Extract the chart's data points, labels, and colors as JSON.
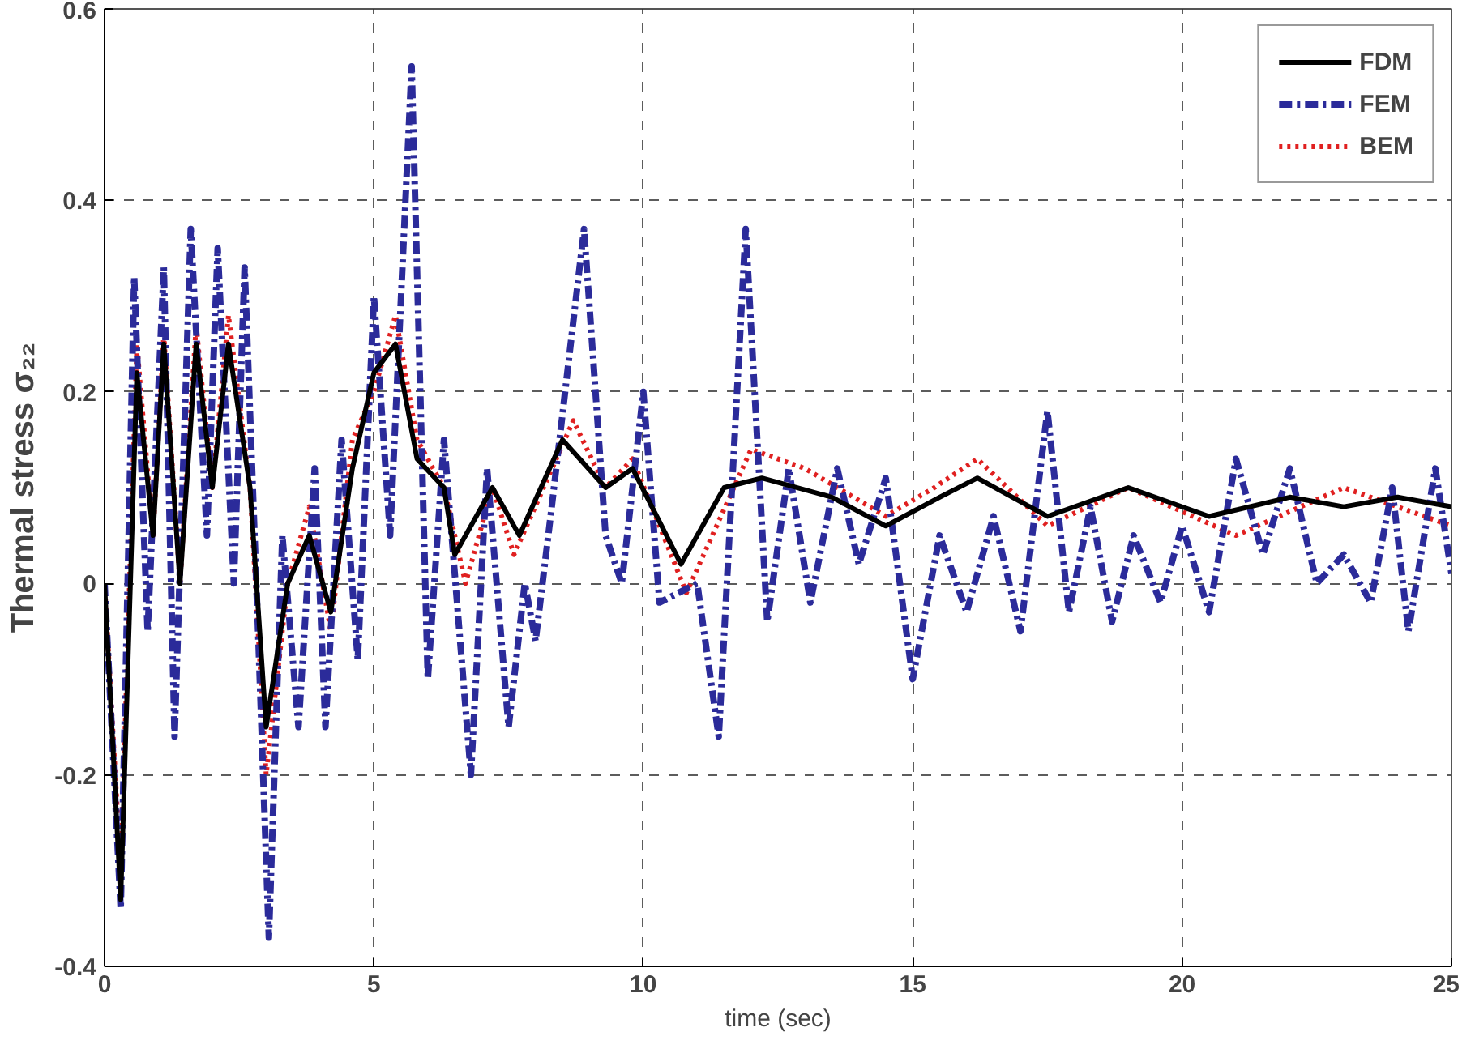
{
  "chart_data": {
    "type": "line",
    "xlabel": "time (sec)",
    "ylabel": "Thermal stress σ₂₂",
    "xlim": [
      0,
      25
    ],
    "ylim": [
      -0.4,
      0.6
    ],
    "xticks": [
      0,
      5,
      10,
      15,
      20,
      25
    ],
    "yticks": [
      -0.4,
      -0.2,
      0,
      0.2,
      0.4,
      0.6
    ],
    "grid": true,
    "legend": "top right",
    "series": [
      {
        "name": "FDM",
        "color": "#000000",
        "line_style": "solid",
        "x": [
          0,
          0.3,
          0.6,
          0.9,
          1.1,
          1.4,
          1.7,
          2.0,
          2.3,
          2.7,
          3.0,
          3.4,
          3.8,
          4.2,
          4.6,
          5.0,
          5.4,
          5.8,
          6.3,
          6.5,
          7.2,
          7.7,
          8.5,
          9.3,
          9.8,
          10.7,
          11.5,
          12.2,
          13.5,
          14.5,
          15.5,
          16.2,
          17.5,
          19.0,
          20.5,
          22.0,
          23.0,
          24.0,
          25.0
        ],
        "values": [
          0,
          -0.33,
          0.22,
          0.05,
          0.25,
          0.0,
          0.25,
          0.1,
          0.25,
          0.1,
          -0.15,
          0.0,
          0.05,
          -0.03,
          0.12,
          0.22,
          0.25,
          0.13,
          0.1,
          0.03,
          0.1,
          0.05,
          0.15,
          0.1,
          0.12,
          0.02,
          0.1,
          0.11,
          0.09,
          0.06,
          0.09,
          0.11,
          0.07,
          0.1,
          0.07,
          0.09,
          0.08,
          0.09,
          0.08
        ]
      },
      {
        "name": "FEM",
        "color": "#2b2b9a",
        "line_style": "dashdot",
        "x": [
          0,
          0.3,
          0.55,
          0.8,
          1.1,
          1.3,
          1.6,
          1.9,
          2.1,
          2.4,
          2.6,
          2.85,
          3.05,
          3.3,
          3.6,
          3.9,
          4.1,
          4.4,
          4.7,
          5.0,
          5.3,
          5.7,
          6.0,
          6.3,
          6.8,
          7.1,
          7.5,
          7.8,
          8.0,
          8.3,
          8.9,
          9.3,
          9.6,
          10.0,
          10.3,
          11.0,
          11.4,
          11.9,
          12.3,
          12.7,
          13.1,
          13.6,
          14.0,
          14.5,
          15.0,
          15.5,
          16.0,
          16.5,
          17.0,
          17.5,
          17.9,
          18.3,
          18.7,
          19.1,
          19.6,
          20.0,
          20.5,
          21.0,
          21.5,
          22.0,
          22.5,
          23.0,
          23.5,
          23.9,
          24.2,
          24.7,
          25.0
        ],
        "values": [
          0,
          -0.34,
          0.32,
          -0.05,
          0.33,
          -0.16,
          0.37,
          0.05,
          0.35,
          0.0,
          0.33,
          -0.05,
          -0.37,
          0.05,
          -0.15,
          0.12,
          -0.15,
          0.15,
          -0.08,
          0.3,
          0.05,
          0.54,
          -0.1,
          0.15,
          -0.2,
          0.12,
          -0.15,
          0.0,
          -0.06,
          0.08,
          0.37,
          0.05,
          0.0,
          0.2,
          -0.02,
          0.0,
          -0.16,
          0.37,
          -0.04,
          0.12,
          -0.02,
          0.12,
          0.02,
          0.11,
          -0.1,
          0.05,
          -0.03,
          0.07,
          -0.05,
          0.18,
          -0.03,
          0.08,
          -0.04,
          0.05,
          -0.02,
          0.06,
          -0.03,
          0.13,
          0.03,
          0.12,
          0.0,
          0.03,
          -0.02,
          0.1,
          -0.05,
          0.12,
          0.01
        ]
      },
      {
        "name": "BEM",
        "color": "#e02020",
        "line_style": "dotted",
        "x": [
          0,
          0.3,
          0.6,
          0.9,
          1.1,
          1.4,
          1.7,
          2.0,
          2.3,
          2.7,
          3.0,
          3.4,
          3.8,
          4.2,
          4.6,
          5.0,
          5.4,
          5.8,
          6.3,
          6.7,
          7.2,
          7.6,
          8.7,
          9.3,
          9.8,
          10.8,
          12.0,
          13.0,
          14.5,
          15.4,
          16.2,
          17.5,
          19.0,
          21.0,
          23.0,
          25.0
        ],
        "values": [
          0,
          -0.3,
          0.25,
          0.05,
          0.26,
          0.0,
          0.27,
          0.1,
          0.28,
          0.1,
          -0.2,
          0.0,
          0.08,
          -0.05,
          0.15,
          0.2,
          0.28,
          0.15,
          0.1,
          0.0,
          0.1,
          0.03,
          0.17,
          0.1,
          0.13,
          -0.01,
          0.14,
          0.12,
          0.07,
          0.1,
          0.13,
          0.06,
          0.1,
          0.05,
          0.1,
          0.06
        ]
      }
    ]
  }
}
